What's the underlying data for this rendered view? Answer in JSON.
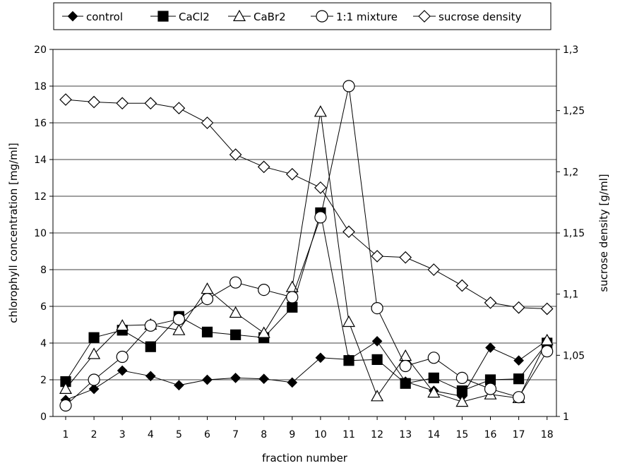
{
  "chart_data": {
    "type": "line",
    "xlabel": "fraction number",
    "ylabel_left": "chlorophyll concentration [mg/ml]",
    "ylabel_right": "sucrose density [g/ml]",
    "x": [
      1,
      2,
      3,
      4,
      5,
      6,
      7,
      8,
      9,
      10,
      11,
      12,
      13,
      14,
      15,
      16,
      17,
      18
    ],
    "x_tick_labels": [
      "1",
      "2",
      "3",
      "4",
      "5",
      "6",
      "7",
      "8",
      "9",
      "10",
      "11",
      "12",
      "13",
      "14",
      "15",
      "16",
      "17",
      "18"
    ],
    "ylim_left": [
      0,
      20
    ],
    "y_ticks_left": [
      "0",
      "2",
      "4",
      "6",
      "8",
      "10",
      "12",
      "14",
      "16",
      "18",
      "20"
    ],
    "ylim_right": [
      1,
      1.3
    ],
    "y_ticks_right": [
      "1",
      "1,05",
      "1,1",
      "1,15",
      "1,2",
      "1,25",
      "1,3"
    ],
    "grid": true,
    "legend_position": "top",
    "series": [
      {
        "name": "control",
        "marker": "diamond-filled",
        "axis": "left",
        "values": [
          0.9,
          1.5,
          2.5,
          2.2,
          1.7,
          2.0,
          2.1,
          2.05,
          1.85,
          3.2,
          3.1,
          4.1,
          1.9,
          1.4,
          1.1,
          3.75,
          3.05,
          4.15
        ]
      },
      {
        "name": "CaCl2",
        "marker": "square-filled",
        "axis": "left",
        "values": [
          1.9,
          4.3,
          4.7,
          3.8,
          5.45,
          4.6,
          4.45,
          4.3,
          5.95,
          11.1,
          3.05,
          3.1,
          1.8,
          2.1,
          1.4,
          2.0,
          2.05,
          4.0
        ]
      },
      {
        "name": "CaBr2",
        "marker": "triangle-open",
        "axis": "left",
        "values": [
          1.5,
          3.4,
          4.95,
          5.0,
          4.7,
          6.95,
          5.65,
          4.55,
          7.05,
          16.6,
          5.15,
          1.1,
          3.3,
          1.3,
          0.8,
          1.2,
          1.0,
          4.15
        ]
      },
      {
        "name": "1:1 mixture",
        "marker": "circle-open",
        "axis": "left",
        "values": [
          0.6,
          2.0,
          3.25,
          4.95,
          5.3,
          6.4,
          7.3,
          6.9,
          6.5,
          10.85,
          18.0,
          5.9,
          2.75,
          3.2,
          2.1,
          1.5,
          1.05,
          3.55
        ]
      },
      {
        "name": "sucrose density",
        "marker": "diamond-open",
        "axis": "right",
        "values": [
          1.259,
          1.257,
          1.256,
          1.256,
          1.252,
          1.24,
          1.214,
          1.204,
          1.198,
          1.187,
          1.151,
          1.131,
          1.13,
          1.12,
          1.107,
          1.093,
          1.089,
          1.088
        ]
      }
    ]
  }
}
